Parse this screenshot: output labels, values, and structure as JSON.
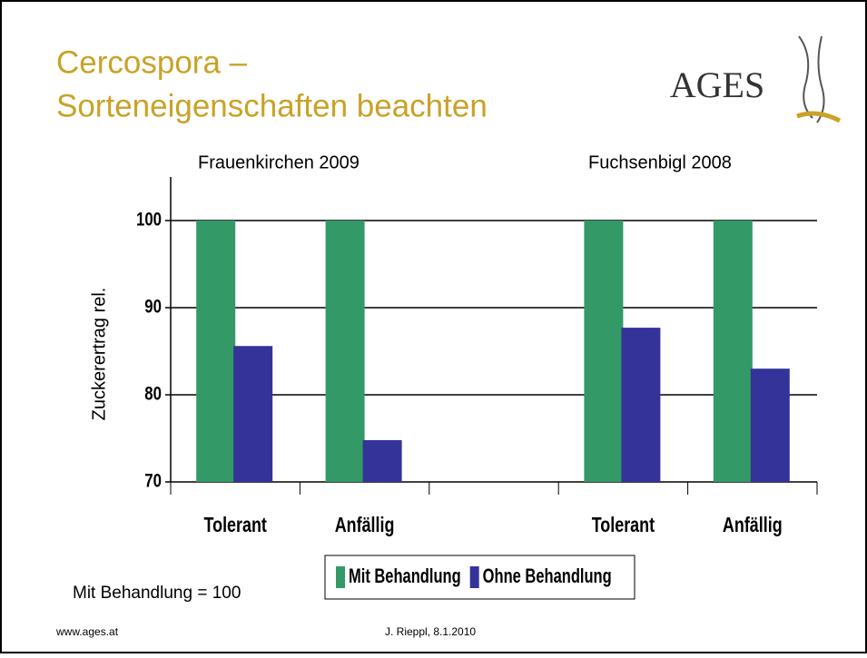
{
  "slide": {
    "title": [
      "Cercospora –",
      "Sorteneigenschaften beachten"
    ],
    "logo": "AGES",
    "note": "Mit Behandlung = 100",
    "footer_left": "www.ages.at",
    "footer_center": "J. Rieppl, 8.1.2010"
  },
  "chart_data": {
    "type": "bar",
    "ylabel": "Zuckerertrag rel.",
    "group_labels": [
      "Frauenkirchen 2009",
      "Fuchsenbigl 2008"
    ],
    "categories": [
      "Tolerant",
      "Anfällig",
      null,
      "Tolerant",
      "Anfällig"
    ],
    "series": [
      {
        "name": "Mit Behandlung",
        "color": "#339966",
        "values": [
          100,
          100,
          null,
          100,
          100
        ]
      },
      {
        "name": "Ohne Behandlung",
        "color": "#333399",
        "values": [
          85.6,
          74.8,
          null,
          87.7,
          83
        ]
      }
    ],
    "ylim": [
      70,
      105
    ],
    "yticks": [
      70,
      80,
      90,
      100
    ],
    "grid": true,
    "legend": "bottom"
  }
}
